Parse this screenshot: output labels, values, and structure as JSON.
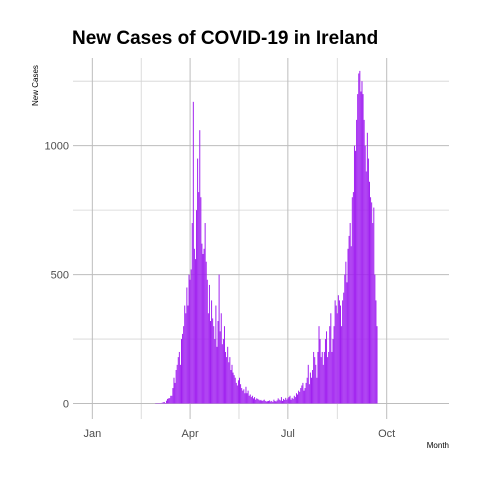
{
  "chart_data": {
    "type": "bar",
    "title": "New Cases of COVID-19 in Ireland",
    "xlabel": "Month",
    "ylabel": "New  Cases",
    "x_domain": [
      "2019-12-14",
      "2020-11-28"
    ],
    "ylim": [
      -60,
      1340
    ],
    "x_ticks": [
      {
        "date": "2020-01-01",
        "label": "Jan"
      },
      {
        "date": "2020-04-01",
        "label": "Apr"
      },
      {
        "date": "2020-07-01",
        "label": "Jul"
      },
      {
        "date": "2020-10-01",
        "label": "Oct"
      }
    ],
    "y_ticks": [
      {
        "value": 0,
        "label": "0"
      },
      {
        "value": 500,
        "label": "500"
      },
      {
        "value": 1000,
        "label": "1000"
      }
    ],
    "bar_color": "#a020f0",
    "grid": true,
    "legend": "none",
    "series": [
      {
        "start_date": "2020-02-29",
        "end_date": "2020-11-09",
        "values": [
          1,
          0,
          1,
          0,
          0,
          1,
          3,
          5,
          6,
          2,
          11,
          18,
          20,
          21,
          30,
          30,
          60,
          100,
          80,
          130,
          150,
          180,
          200,
          150,
          250,
          270,
          300,
          380,
          350,
          450,
          380,
          500,
          480,
          520,
          700,
          1170,
          600,
          560,
          750,
          950,
          820,
          1060,
          800,
          620,
          580,
          600,
          700,
          550,
          480,
          350,
          460,
          320,
          400,
          330,
          300,
          250,
          380,
          220,
          320,
          500,
          280,
          350,
          230,
          250,
          300,
          200,
          180,
          220,
          160,
          180,
          130,
          150,
          120,
          110,
          100,
          80,
          70,
          90,
          100,
          75,
          60,
          50,
          55,
          40,
          65,
          40,
          50,
          30,
          35,
          25,
          30,
          20,
          25,
          15,
          20,
          18,
          15,
          12,
          14,
          10,
          12,
          15,
          10,
          8,
          9,
          10,
          12,
          8,
          10,
          6,
          15,
          10,
          8,
          12,
          20,
          15,
          12,
          25,
          10,
          18,
          14,
          22,
          15,
          20,
          25,
          30,
          15,
          22,
          18,
          30,
          25,
          40,
          35,
          50,
          45,
          60,
          70,
          80,
          50,
          60,
          80,
          100,
          150,
          75,
          120,
          100,
          130,
          200,
          180,
          150,
          100,
          200,
          300,
          250,
          180,
          200,
          150,
          200,
          250,
          280,
          180,
          200,
          300,
          350,
          200,
          250,
          300,
          400,
          380,
          350,
          420,
          400,
          380,
          300,
          400,
          430,
          500,
          550,
          470,
          600,
          650,
          700,
          610,
          800,
          820,
          1000,
          980,
          1100,
          1200,
          1280,
          1290,
          1210,
          1250,
          1200,
          1100,
          1000,
          900,
          1050,
          950,
          860,
          800,
          780,
          700,
          760,
          500,
          400,
          300
        ]
      }
    ]
  }
}
